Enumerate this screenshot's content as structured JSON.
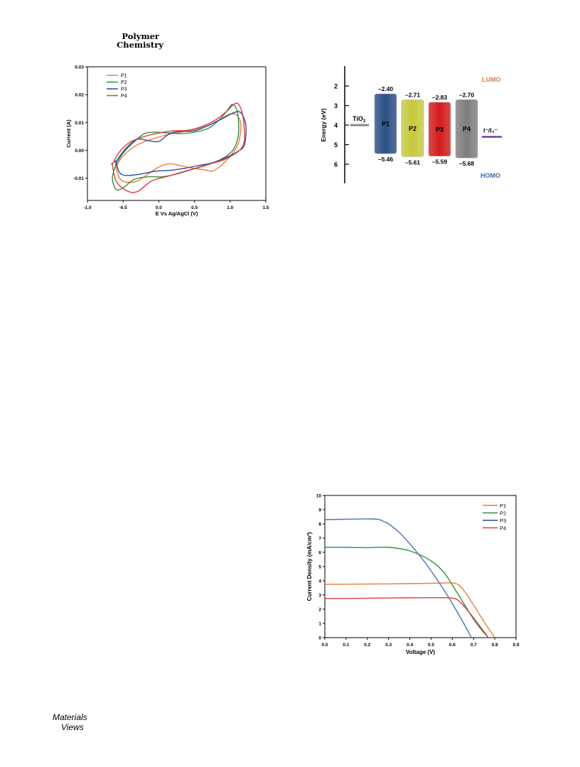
{
  "header": {
    "journal_line1": "Polymer",
    "journal_line2": "Chemistry"
  },
  "footer": {
    "logo_text": "MaterialsViews"
  },
  "chart_data": [
    {
      "type": "line",
      "title": "",
      "xlabel": "E Vs Ag/AgCl (V)",
      "ylabel": "Current (A)",
      "xlim": [
        -1.0,
        1.5
      ],
      "ylim": [
        -0.018,
        0.03
      ],
      "xticks": [
        "-1.0",
        "-0.5",
        "0.0",
        "0.5",
        "1.0",
        "1.5"
      ],
      "yticks": [
        "0.03",
        "0.02",
        "0.01",
        "0.00",
        "-0.01"
      ],
      "legend_position": "top-left",
      "grid": false,
      "series": [
        {
          "name": "P1",
          "color": "#ef7d2f",
          "x": [
            -0.6,
            -0.5,
            -0.3,
            -0.1,
            0.1,
            0.3,
            0.5,
            0.7,
            0.85,
            1.0,
            1.1,
            1.15,
            1.12,
            1.05,
            0.95,
            0.85,
            0.75,
            0.65,
            0.5,
            0.3,
            0.15,
            0.0,
            -0.15,
            -0.3,
            -0.45,
            -0.55,
            -0.6
          ],
          "y": [
            -0.006,
            -0.002,
            0.002,
            0.004,
            0.0055,
            0.0065,
            0.0075,
            0.009,
            0.011,
            0.013,
            0.0125,
            0.009,
            0.003,
            -0.0005,
            -0.0035,
            -0.006,
            -0.0075,
            -0.007,
            -0.0065,
            -0.0055,
            -0.0048,
            -0.006,
            -0.0085,
            -0.011,
            -0.0115,
            -0.01,
            -0.006
          ]
        },
        {
          "name": "P2",
          "color": "#2b9442",
          "x": [
            -0.6,
            -0.5,
            -0.35,
            -0.2,
            -0.05,
            0.1,
            0.3,
            0.5,
            0.7,
            0.85,
            0.95,
            1.03,
            1.1,
            1.12,
            1.08,
            1.0,
            0.85,
            0.65,
            0.45,
            0.25,
            0.05,
            -0.15,
            -0.35,
            -0.5,
            -0.6,
            -0.65,
            -0.6
          ],
          "y": [
            -0.005,
            -0.001,
            0.003,
            0.006,
            0.0065,
            0.0063,
            0.006,
            0.0065,
            0.008,
            0.011,
            0.014,
            0.0165,
            0.014,
            0.007,
            0.002,
            -0.001,
            -0.0035,
            -0.0055,
            -0.007,
            -0.0085,
            -0.0095,
            -0.0095,
            -0.0105,
            -0.0135,
            -0.014,
            -0.01,
            -0.005
          ]
        },
        {
          "name": "P3",
          "color": "#2a49a6",
          "x": [
            -0.6,
            -0.45,
            -0.3,
            -0.15,
            0.0,
            0.15,
            0.3,
            0.5,
            0.7,
            0.9,
            1.05,
            1.15,
            1.22,
            1.2,
            1.1,
            0.95,
            0.75,
            0.55,
            0.35,
            0.15,
            -0.05,
            -0.25,
            -0.45,
            -0.55,
            -0.6
          ],
          "y": [
            -0.004,
            0.001,
            0.004,
            0.0035,
            0.0032,
            0.006,
            0.0068,
            0.007,
            0.009,
            0.0115,
            0.0135,
            0.0135,
            0.009,
            0.002,
            -0.0005,
            -0.0025,
            -0.0045,
            -0.0055,
            -0.0065,
            -0.0072,
            -0.0075,
            -0.0085,
            -0.009,
            -0.008,
            -0.004
          ]
        },
        {
          "name": "P4",
          "color": "#e23a3f",
          "x": [
            -0.65,
            -0.55,
            -0.4,
            -0.2,
            0.0,
            0.2,
            0.4,
            0.6,
            0.8,
            0.95,
            1.05,
            1.12,
            1.18,
            1.2,
            1.15,
            1.05,
            0.9,
            0.7,
            0.5,
            0.3,
            0.1,
            -0.1,
            -0.3,
            -0.45,
            -0.6,
            -0.65
          ],
          "y": [
            -0.005,
            -0.0005,
            0.003,
            0.005,
            0.0062,
            0.007,
            0.0072,
            0.0085,
            0.011,
            0.014,
            0.0165,
            0.0165,
            0.012,
            0.004,
            0.0005,
            -0.0015,
            -0.0035,
            -0.005,
            -0.0065,
            -0.008,
            -0.0095,
            -0.011,
            -0.0148,
            -0.0145,
            -0.011,
            -0.005
          ]
        }
      ]
    },
    {
      "type": "diagram",
      "ylabel": "Energy (eV)",
      "yticks": [
        "2",
        "3",
        "4",
        "5",
        "6"
      ],
      "ylim": [
        1.0,
        7.0
      ],
      "lumo_label": "LUMO",
      "homo_label": "HOMO",
      "lumo_color": "#e07b39",
      "homo_color": "#2f6fb3",
      "tio2_label": "TiO",
      "tio2_subscript": "2",
      "tio2_level": 4.0,
      "redox_label": "I⁻/I₃⁻",
      "redox_level": 4.6,
      "redox_color": "#6b3fa0",
      "bars": [
        {
          "name": "P1",
          "lumo": -2.4,
          "homo": -5.46,
          "lumo_text": "–2.40",
          "homo_text": "–5.46",
          "color": "#2b4f86"
        },
        {
          "name": "P2",
          "lumo": -2.71,
          "homo": -5.61,
          "lumo_text": "–2.71",
          "homo_text": "–5.61",
          "color": "#c6c93a"
        },
        {
          "name": "P3",
          "lumo": -2.83,
          "homo": -5.59,
          "lumo_text": "–2.83",
          "homo_text": "–5.59",
          "color": "#d41c1c"
        },
        {
          "name": "P4",
          "lumo": -2.7,
          "homo": -5.68,
          "lumo_text": "–2.70",
          "homo_text": "–5.68",
          "color": "#7d7d7d"
        }
      ]
    },
    {
      "type": "line",
      "title": "",
      "xlabel": "Voltage (V)",
      "ylabel": "Current Density (mA/cm²)",
      "xlim": [
        0.0,
        0.9
      ],
      "ylim": [
        0,
        10
      ],
      "xticks": [
        "0.0",
        "0.1",
        "0.2",
        "0.3",
        "0.4",
        "0.5",
        "0.6",
        "0.7",
        "0.8",
        "0.9"
      ],
      "yticks": [
        "0",
        "1",
        "2",
        "3",
        "4",
        "5",
        "6",
        "7",
        "8",
        "9",
        "10"
      ],
      "legend_position": "top-right",
      "grid": false,
      "series": [
        {
          "name": "P1",
          "color": "#ef7d2f",
          "x": [
            0.0,
            0.1,
            0.2,
            0.3,
            0.4,
            0.5,
            0.55,
            0.6,
            0.63,
            0.66,
            0.7,
            0.75,
            0.8
          ],
          "y": [
            3.75,
            3.76,
            3.77,
            3.78,
            3.8,
            3.82,
            3.84,
            3.85,
            3.7,
            3.2,
            2.3,
            1.1,
            0.0
          ]
        },
        {
          "name": "P2",
          "color": "#2b9442",
          "x": [
            0.0,
            0.1,
            0.2,
            0.3,
            0.4,
            0.5,
            0.56,
            0.6,
            0.65,
            0.7,
            0.74,
            0.77
          ],
          "y": [
            6.35,
            6.35,
            6.33,
            6.35,
            6.1,
            5.4,
            4.6,
            3.7,
            2.5,
            1.3,
            0.5,
            0.0
          ]
        },
        {
          "name": "P3",
          "color": "#4a74b4",
          "x": [
            0.0,
            0.1,
            0.2,
            0.25,
            0.28,
            0.3,
            0.35,
            0.4,
            0.45,
            0.5,
            0.55,
            0.6,
            0.65,
            0.69
          ],
          "y": [
            8.3,
            8.33,
            8.35,
            8.32,
            8.15,
            8.0,
            7.4,
            6.6,
            5.7,
            4.7,
            3.6,
            2.4,
            1.1,
            0.0
          ]
        },
        {
          "name": "P4",
          "color": "#e23a3f",
          "x": [
            0.0,
            0.1,
            0.2,
            0.3,
            0.4,
            0.5,
            0.58,
            0.62,
            0.65,
            0.7,
            0.74,
            0.77
          ],
          "y": [
            2.75,
            2.76,
            2.77,
            2.79,
            2.8,
            2.81,
            2.8,
            2.7,
            2.3,
            1.4,
            0.6,
            0.0
          ]
        }
      ]
    }
  ]
}
